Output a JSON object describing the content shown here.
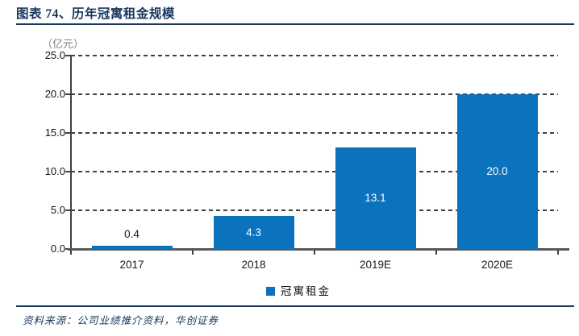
{
  "header": {
    "title": "图表 74、历年冠寓租金规模"
  },
  "colors": {
    "accent_navy": "#17375e",
    "bar_blue": "#0b72be",
    "grid_gray": "#3f3f3f",
    "axis_gray": "#595959",
    "unit_gray": "#7f7f7f",
    "label_on_bar": "#ffffff",
    "label_off_bar": "#1a1a1a"
  },
  "legend": {
    "label": "冠寓租金",
    "marker": "square"
  },
  "footer": {
    "source": "资料来源：公司业绩推介资料，华创证券"
  },
  "chart_data": {
    "type": "bar",
    "title": "历年冠寓租金规模",
    "categories": [
      "2017",
      "2018",
      "2019E",
      "2020E"
    ],
    "values": [
      0.4,
      4.3,
      13.1,
      20.0
    ],
    "value_labels": [
      "0.4",
      "4.3",
      "13.1",
      "20.0"
    ],
    "series_name": "冠寓租金",
    "xlabel": "",
    "ylabel": "（亿元）",
    "ylim": [
      0,
      25
    ],
    "yticks": [
      0,
      5,
      10,
      15,
      20,
      25
    ],
    "ytick_labels": [
      "0.0",
      "5.0",
      "10.0",
      "15.0",
      "20.0",
      "25.0"
    ],
    "grid": "horizontal-dashed",
    "legend_position": "bottom-center",
    "bar_color": "#0b72be"
  }
}
